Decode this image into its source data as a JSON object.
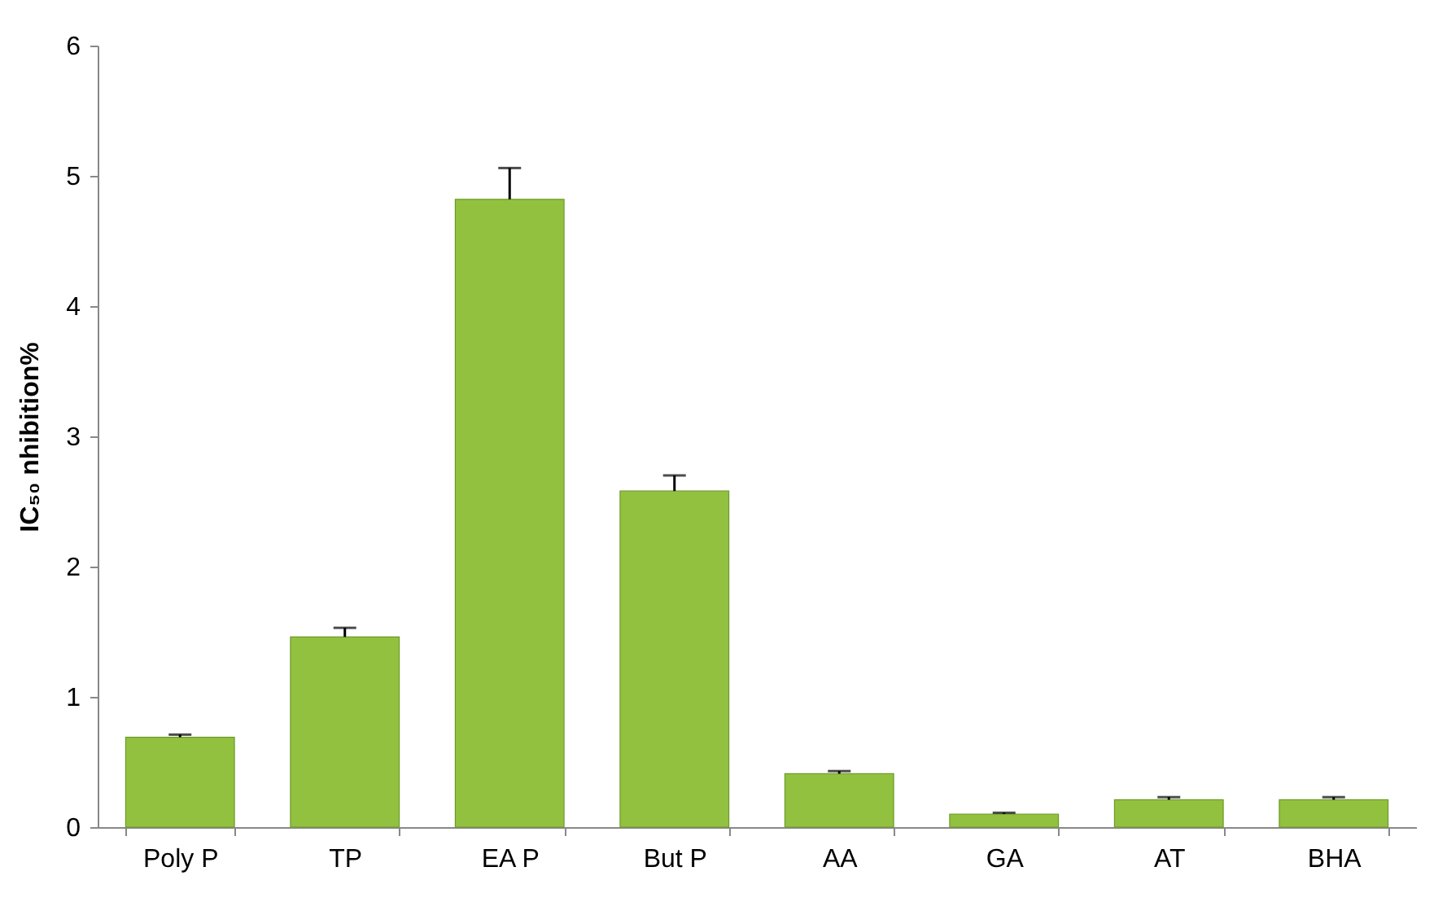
{
  "chart_data": {
    "type": "bar",
    "ylabel": "IC₅₀ nhibition%",
    "categories": [
      "Poly P",
      "TP",
      "EA P",
      "But P",
      "AA",
      "GA",
      "AT",
      "BHA"
    ],
    "values": [
      0.69,
      1.46,
      4.82,
      2.58,
      0.41,
      0.1,
      0.21,
      0.21
    ],
    "errors": [
      [
        0.69,
        0.71
      ],
      [
        1.46,
        1.53
      ],
      [
        4.82,
        5.06
      ],
      [
        2.58,
        2.7
      ],
      [
        0.41,
        0.43
      ],
      [
        0.1,
        0.11
      ],
      [
        0.21,
        0.23
      ],
      [
        0.21,
        0.23
      ]
    ],
    "color": "#92c13f",
    "ylim": [
      0,
      6
    ],
    "yticks": [
      0,
      1,
      2,
      3,
      4,
      5,
      6
    ],
    "grid": false
  }
}
